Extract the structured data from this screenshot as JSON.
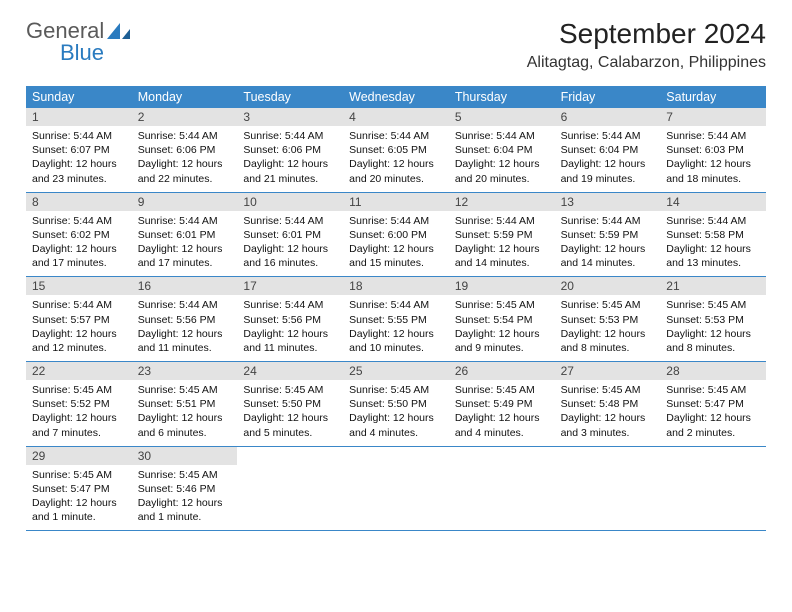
{
  "brand": {
    "general": "General",
    "blue": "Blue"
  },
  "title": "September 2024",
  "location": "Alitagtag, Calabarzon, Philippines",
  "colors": {
    "header_bg": "#3a87c8",
    "header_text": "#ffffff",
    "date_bar_bg": "#e3e3e3",
    "week_border": "#3a87c8",
    "logo_blue": "#2a7bbf",
    "logo_gray": "#5a5a5a"
  },
  "daynames": [
    "Sunday",
    "Monday",
    "Tuesday",
    "Wednesday",
    "Thursday",
    "Friday",
    "Saturday"
  ],
  "weeks": [
    [
      {
        "date": "1",
        "sunrise": "Sunrise: 5:44 AM",
        "sunset": "Sunset: 6:07 PM",
        "daylight": "Daylight: 12 hours and 23 minutes."
      },
      {
        "date": "2",
        "sunrise": "Sunrise: 5:44 AM",
        "sunset": "Sunset: 6:06 PM",
        "daylight": "Daylight: 12 hours and 22 minutes."
      },
      {
        "date": "3",
        "sunrise": "Sunrise: 5:44 AM",
        "sunset": "Sunset: 6:06 PM",
        "daylight": "Daylight: 12 hours and 21 minutes."
      },
      {
        "date": "4",
        "sunrise": "Sunrise: 5:44 AM",
        "sunset": "Sunset: 6:05 PM",
        "daylight": "Daylight: 12 hours and 20 minutes."
      },
      {
        "date": "5",
        "sunrise": "Sunrise: 5:44 AM",
        "sunset": "Sunset: 6:04 PM",
        "daylight": "Daylight: 12 hours and 20 minutes."
      },
      {
        "date": "6",
        "sunrise": "Sunrise: 5:44 AM",
        "sunset": "Sunset: 6:04 PM",
        "daylight": "Daylight: 12 hours and 19 minutes."
      },
      {
        "date": "7",
        "sunrise": "Sunrise: 5:44 AM",
        "sunset": "Sunset: 6:03 PM",
        "daylight": "Daylight: 12 hours and 18 minutes."
      }
    ],
    [
      {
        "date": "8",
        "sunrise": "Sunrise: 5:44 AM",
        "sunset": "Sunset: 6:02 PM",
        "daylight": "Daylight: 12 hours and 17 minutes."
      },
      {
        "date": "9",
        "sunrise": "Sunrise: 5:44 AM",
        "sunset": "Sunset: 6:01 PM",
        "daylight": "Daylight: 12 hours and 17 minutes."
      },
      {
        "date": "10",
        "sunrise": "Sunrise: 5:44 AM",
        "sunset": "Sunset: 6:01 PM",
        "daylight": "Daylight: 12 hours and 16 minutes."
      },
      {
        "date": "11",
        "sunrise": "Sunrise: 5:44 AM",
        "sunset": "Sunset: 6:00 PM",
        "daylight": "Daylight: 12 hours and 15 minutes."
      },
      {
        "date": "12",
        "sunrise": "Sunrise: 5:44 AM",
        "sunset": "Sunset: 5:59 PM",
        "daylight": "Daylight: 12 hours and 14 minutes."
      },
      {
        "date": "13",
        "sunrise": "Sunrise: 5:44 AM",
        "sunset": "Sunset: 5:59 PM",
        "daylight": "Daylight: 12 hours and 14 minutes."
      },
      {
        "date": "14",
        "sunrise": "Sunrise: 5:44 AM",
        "sunset": "Sunset: 5:58 PM",
        "daylight": "Daylight: 12 hours and 13 minutes."
      }
    ],
    [
      {
        "date": "15",
        "sunrise": "Sunrise: 5:44 AM",
        "sunset": "Sunset: 5:57 PM",
        "daylight": "Daylight: 12 hours and 12 minutes."
      },
      {
        "date": "16",
        "sunrise": "Sunrise: 5:44 AM",
        "sunset": "Sunset: 5:56 PM",
        "daylight": "Daylight: 12 hours and 11 minutes."
      },
      {
        "date": "17",
        "sunrise": "Sunrise: 5:44 AM",
        "sunset": "Sunset: 5:56 PM",
        "daylight": "Daylight: 12 hours and 11 minutes."
      },
      {
        "date": "18",
        "sunrise": "Sunrise: 5:44 AM",
        "sunset": "Sunset: 5:55 PM",
        "daylight": "Daylight: 12 hours and 10 minutes."
      },
      {
        "date": "19",
        "sunrise": "Sunrise: 5:45 AM",
        "sunset": "Sunset: 5:54 PM",
        "daylight": "Daylight: 12 hours and 9 minutes."
      },
      {
        "date": "20",
        "sunrise": "Sunrise: 5:45 AM",
        "sunset": "Sunset: 5:53 PM",
        "daylight": "Daylight: 12 hours and 8 minutes."
      },
      {
        "date": "21",
        "sunrise": "Sunrise: 5:45 AM",
        "sunset": "Sunset: 5:53 PM",
        "daylight": "Daylight: 12 hours and 8 minutes."
      }
    ],
    [
      {
        "date": "22",
        "sunrise": "Sunrise: 5:45 AM",
        "sunset": "Sunset: 5:52 PM",
        "daylight": "Daylight: 12 hours and 7 minutes."
      },
      {
        "date": "23",
        "sunrise": "Sunrise: 5:45 AM",
        "sunset": "Sunset: 5:51 PM",
        "daylight": "Daylight: 12 hours and 6 minutes."
      },
      {
        "date": "24",
        "sunrise": "Sunrise: 5:45 AM",
        "sunset": "Sunset: 5:50 PM",
        "daylight": "Daylight: 12 hours and 5 minutes."
      },
      {
        "date": "25",
        "sunrise": "Sunrise: 5:45 AM",
        "sunset": "Sunset: 5:50 PM",
        "daylight": "Daylight: 12 hours and 4 minutes."
      },
      {
        "date": "26",
        "sunrise": "Sunrise: 5:45 AM",
        "sunset": "Sunset: 5:49 PM",
        "daylight": "Daylight: 12 hours and 4 minutes."
      },
      {
        "date": "27",
        "sunrise": "Sunrise: 5:45 AM",
        "sunset": "Sunset: 5:48 PM",
        "daylight": "Daylight: 12 hours and 3 minutes."
      },
      {
        "date": "28",
        "sunrise": "Sunrise: 5:45 AM",
        "sunset": "Sunset: 5:47 PM",
        "daylight": "Daylight: 12 hours and 2 minutes."
      }
    ],
    [
      {
        "date": "29",
        "sunrise": "Sunrise: 5:45 AM",
        "sunset": "Sunset: 5:47 PM",
        "daylight": "Daylight: 12 hours and 1 minute."
      },
      {
        "date": "30",
        "sunrise": "Sunrise: 5:45 AM",
        "sunset": "Sunset: 5:46 PM",
        "daylight": "Daylight: 12 hours and 1 minute."
      },
      {
        "empty": true
      },
      {
        "empty": true
      },
      {
        "empty": true
      },
      {
        "empty": true
      },
      {
        "empty": true
      }
    ]
  ]
}
